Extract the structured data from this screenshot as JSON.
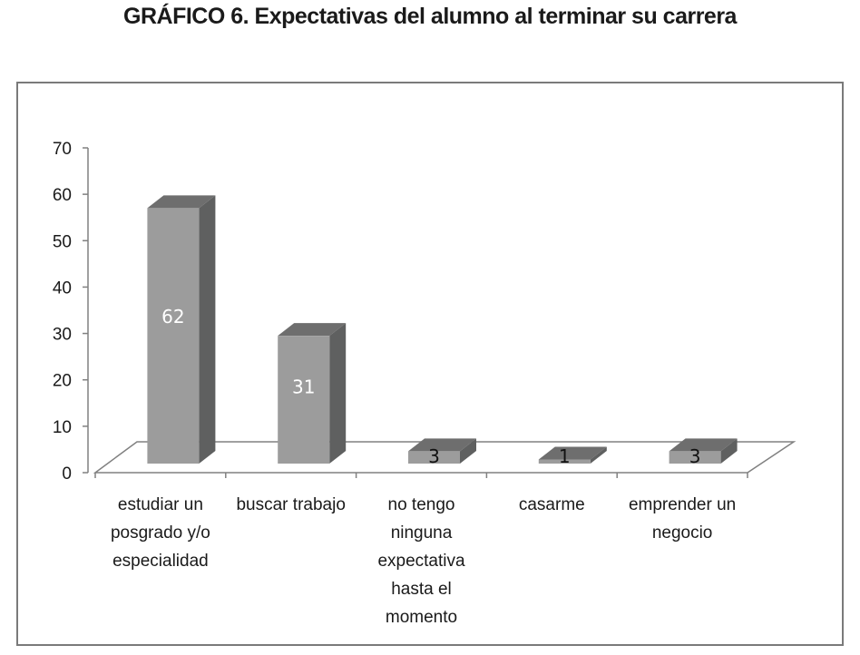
{
  "chart_data": {
    "type": "bar",
    "title": "GRÁFICO 6. Expectativas del alumno al terminar su carrera",
    "categories": [
      [
        "estudiar un",
        "posgrado y/o",
        "especialidad"
      ],
      [
        "buscar trabajo"
      ],
      [
        "no tengo",
        "ninguna",
        "expectativa",
        "hasta el",
        "momento"
      ],
      [
        "casarme"
      ],
      [
        "emprender un",
        "negocio"
      ]
    ],
    "values": [
      62,
      31,
      3,
      1,
      3
    ],
    "data_labels": [
      "62",
      "31",
      "3",
      "1",
      "3"
    ],
    "ylim": [
      0,
      70
    ],
    "yticks": [
      "0",
      "10",
      "20",
      "30",
      "40",
      "50",
      "60",
      "70"
    ],
    "grid": false,
    "legend": "none",
    "style": "3d-column",
    "colors": {
      "bar_front": "#9c9c9c",
      "bar_top": "#6e6e6e",
      "bar_side": "#5f6060",
      "axis": "#808080"
    }
  }
}
